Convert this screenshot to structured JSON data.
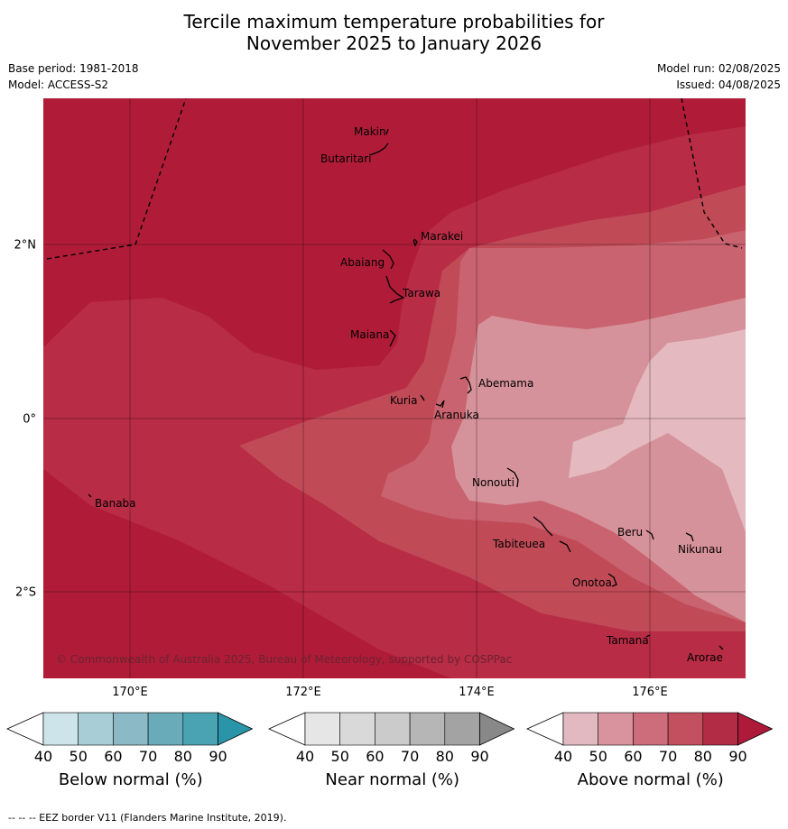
{
  "title_line1": "Tercile maximum temperature probabilities for",
  "title_line2": "November 2025 to January 2026",
  "base_period": "Base period: 1981-2018",
  "model": "Model: ACCESS-S2",
  "model_run": "Model run: 02/08/2025",
  "issued": "Issued: 04/08/2025",
  "copyright": "© Commonwealth of Australia 2025, Bureau of Meteorology, supported by COSPPac",
  "footer": "--  --  -- EEZ border V11 (Flanders Marine Institute, 2019).",
  "lon_labels": [
    "170°E",
    "172°E",
    "174°E",
    "176°E"
  ],
  "lat_labels": [
    "2°N",
    "0°",
    "2°S"
  ],
  "places": [
    {
      "name": "Makin"
    },
    {
      "name": "Butaritari"
    },
    {
      "name": "Marakei"
    },
    {
      "name": "Abaiang"
    },
    {
      "name": "Tarawa"
    },
    {
      "name": "Maiana"
    },
    {
      "name": "Abemama"
    },
    {
      "name": "Kuria"
    },
    {
      "name": "Aranuka"
    },
    {
      "name": "Nonouti"
    },
    {
      "name": "Banaba"
    },
    {
      "name": "Tabiteuea"
    },
    {
      "name": "Beru"
    },
    {
      "name": "Nikunau"
    },
    {
      "name": "Onotoa"
    },
    {
      "name": "Tamana"
    },
    {
      "name": "Arorae"
    }
  ],
  "colorbars": [
    {
      "title": "Below normal (%)",
      "colors": [
        "#cce4ea",
        "#a9cdd6",
        "#8bbac6",
        "#6aabba",
        "#4aa3b3",
        "#2a95a9"
      ]
    },
    {
      "title": "Near normal (%)",
      "colors": [
        "#e6e6e6",
        "#d9d9d9",
        "#cbcbcb",
        "#b6b6b6",
        "#a3a3a3",
        "#888888"
      ]
    },
    {
      "title": "Above normal (%)",
      "colors": [
        "#e2b9c1",
        "#d9939e",
        "#cd6c7b",
        "#c2505f",
        "#b32c45",
        "#ad1a3a"
      ]
    }
  ],
  "colorbar_ticks": [
    "40",
    "50",
    "60",
    "70",
    "80",
    "90"
  ],
  "map_colors": {
    "above_90": "#b01c38",
    "above_80": "#b82c45",
    "above_70": "#c04b57",
    "above_60": "#c9636f",
    "above_50": "#d6929a",
    "above_40": "#e4b9bf"
  }
}
